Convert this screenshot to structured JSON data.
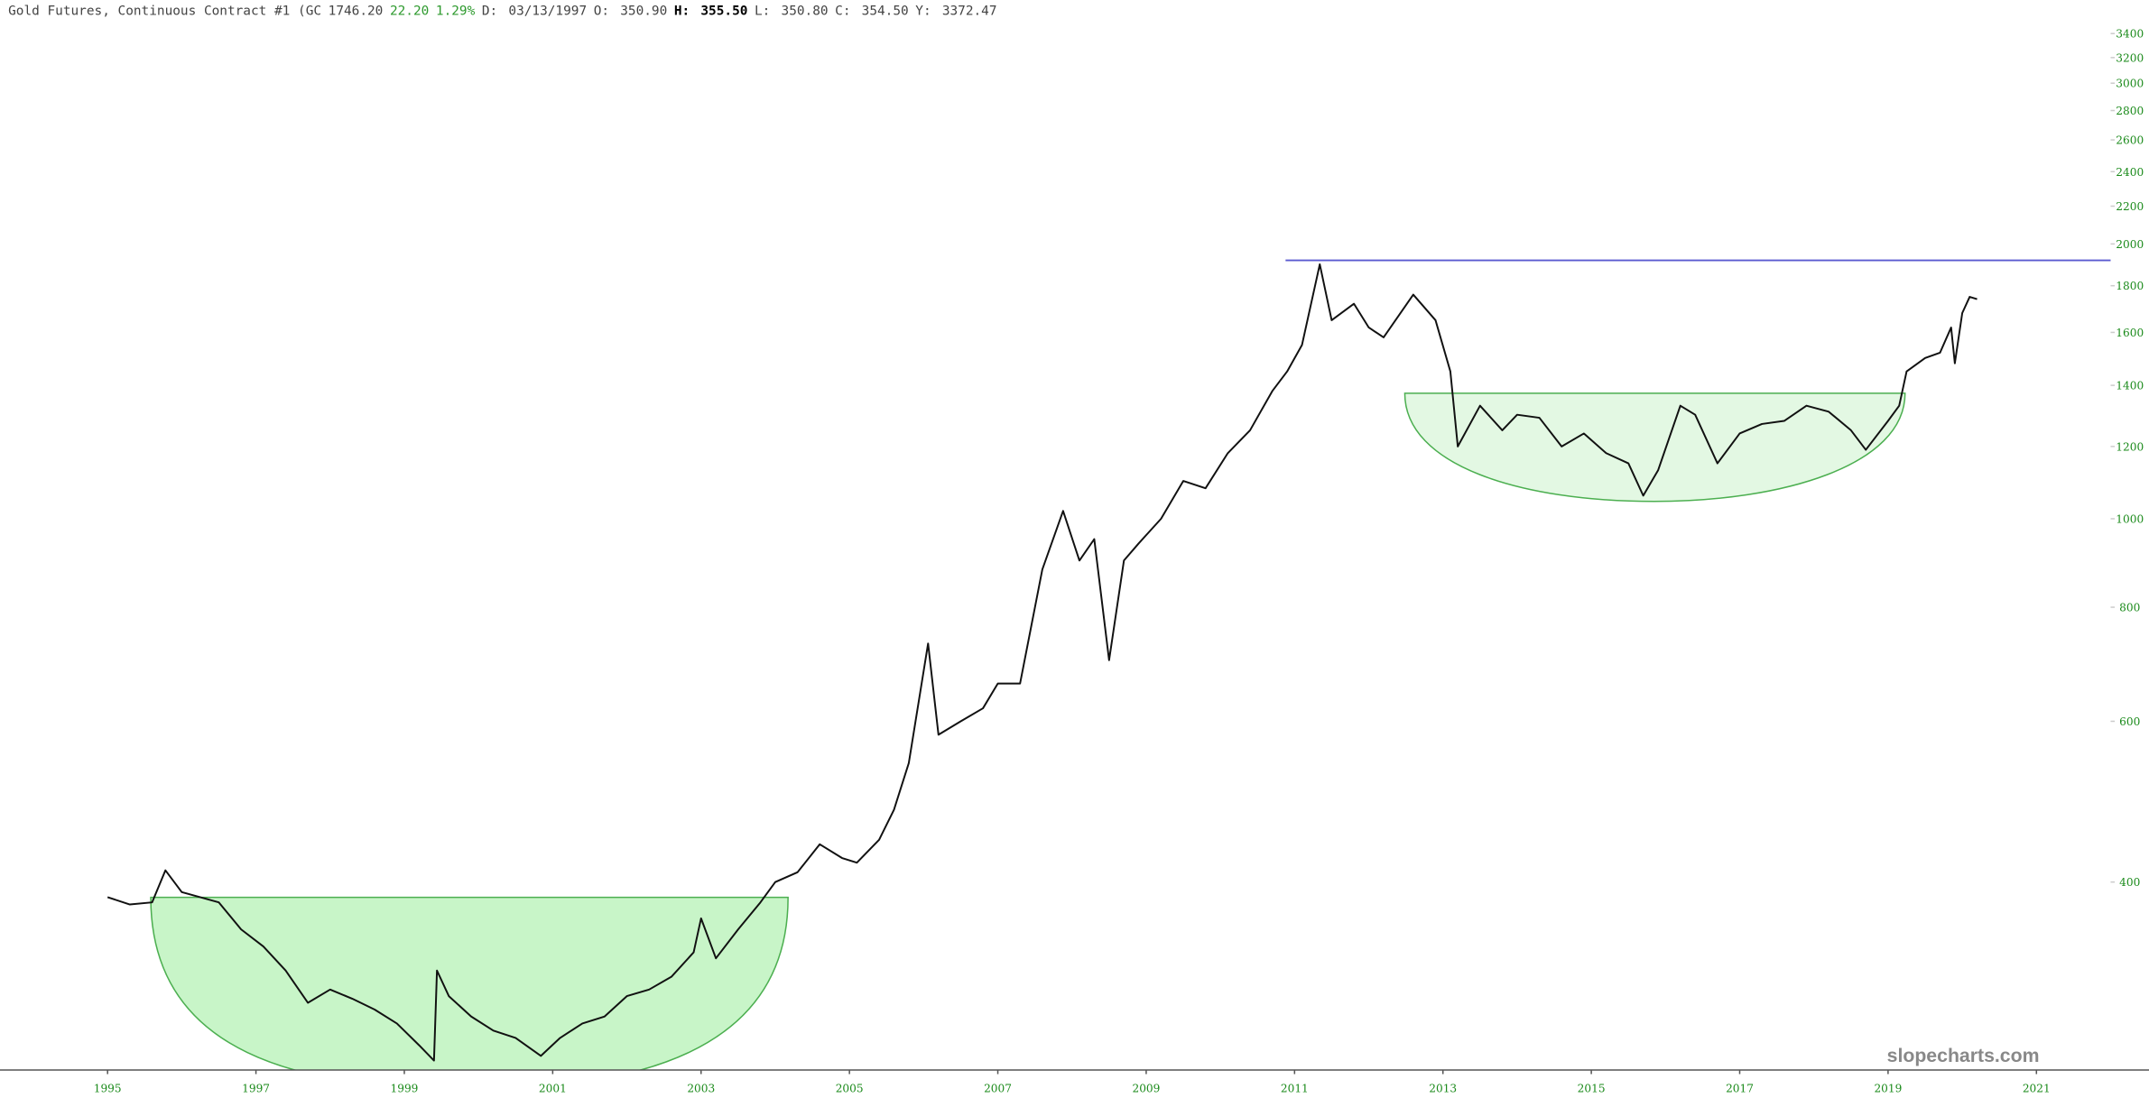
{
  "chart_data": {
    "type": "line",
    "title": "Gold Futures, Continuous Contract #1 (GC",
    "quote": {
      "last": "1746.20",
      "change": "22.20",
      "change_pct": "1.29%"
    },
    "ohlc": [
      {
        "label": "D:",
        "value": "03/13/1997"
      },
      {
        "label": "O:",
        "value": "350.90"
      },
      {
        "label": "H:",
        "value": "355.50"
      },
      {
        "label": "L:",
        "value": "350.80"
      },
      {
        "label": "C:",
        "value": "354.50"
      },
      {
        "label": "Y:",
        "value": "3372.47"
      }
    ],
    "watermark": "slopecharts.com",
    "color": "#111111",
    "yscale": "log",
    "grid": false,
    "xlim": [
      1993.55,
      2022.0
    ],
    "ylim": [
      249,
      3700
    ],
    "xticks": [
      1995,
      1997,
      1999,
      2001,
      2003,
      2005,
      2007,
      2009,
      2011,
      2013,
      2015,
      2017,
      2019,
      2021
    ],
    "yticks": [
      400,
      600,
      800,
      1000,
      1200,
      1400,
      1600,
      1800,
      2000,
      2200,
      2400,
      2600,
      2800,
      3000,
      3200,
      3400
    ],
    "x": [
      1995.0,
      1995.3,
      1995.6,
      1995.78,
      1996.0,
      1996.5,
      1996.8,
      1997.1,
      1997.4,
      1997.7,
      1998.0,
      1998.3,
      1998.6,
      1998.9,
      1999.2,
      1999.4,
      1999.44,
      1999.6,
      1999.9,
      2000.2,
      2000.5,
      2000.84,
      2001.1,
      2001.4,
      2001.7,
      2002.0,
      2002.3,
      2002.6,
      2002.9,
      2003.0,
      2003.2,
      2003.5,
      2003.8,
      2004.0,
      2004.3,
      2004.6,
      2004.9,
      2005.1,
      2005.4,
      2005.6,
      2005.8,
      2006.06,
      2006.2,
      2006.5,
      2006.8,
      2007.0,
      2007.3,
      2007.6,
      2007.88,
      2008.1,
      2008.3,
      2008.5,
      2008.7,
      2008.9,
      2009.2,
      2009.5,
      2009.8,
      2010.1,
      2010.4,
      2010.7,
      2010.9,
      2011.1,
      2011.34,
      2011.5,
      2011.8,
      2012.0,
      2012.2,
      2012.6,
      2012.9,
      2013.1,
      2013.2,
      2013.5,
      2013.8,
      2014.0,
      2014.3,
      2014.6,
      2014.9,
      2015.2,
      2015.5,
      2015.7,
      2015.9,
      2016.2,
      2016.4,
      2016.7,
      2017.0,
      2017.3,
      2017.6,
      2017.9,
      2018.2,
      2018.5,
      2018.7,
      2019.0,
      2019.15,
      2019.25,
      2019.5,
      2019.7,
      2019.85,
      2019.9,
      2020.0,
      2020.1,
      2020.2
    ],
    "values": [
      385,
      378,
      380,
      412,
      390,
      380,
      355,
      340,
      320,
      295,
      305,
      298,
      290,
      280,
      265,
      255,
      320,
      300,
      285,
      275,
      270,
      258,
      270,
      280,
      285,
      300,
      305,
      315,
      335,
      365,
      330,
      355,
      380,
      400,
      410,
      440,
      425,
      420,
      445,
      480,
      540,
      730,
      580,
      600,
      620,
      660,
      660,
      880,
      1020,
      900,
      950,
      700,
      900,
      940,
      1000,
      1100,
      1080,
      1180,
      1250,
      1380,
      1450,
      1550,
      1900,
      1650,
      1720,
      1620,
      1580,
      1760,
      1650,
      1450,
      1200,
      1330,
      1250,
      1300,
      1290,
      1200,
      1240,
      1180,
      1150,
      1060,
      1130,
      1330,
      1300,
      1150,
      1240,
      1270,
      1280,
      1330,
      1310,
      1250,
      1190,
      1280,
      1330,
      1450,
      1500,
      1520,
      1620,
      1480,
      1680,
      1750,
      1740
    ]
  }
}
